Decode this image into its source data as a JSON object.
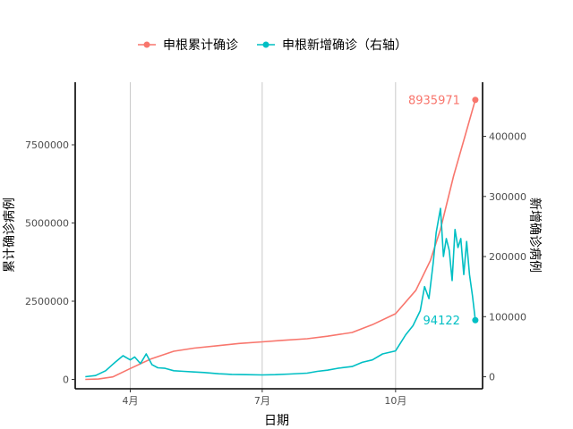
{
  "chart_data": {
    "type": "line",
    "xlabel": "日期",
    "ylabel_left": "累计确诊病例",
    "ylabel_right": "新增确诊病例",
    "x_axis": {
      "range": [
        "2020-02-23",
        "2020-11-30"
      ],
      "ticks": [
        {
          "date": "2020-04-01",
          "label": "4月"
        },
        {
          "date": "2020-07-01",
          "label": "7月"
        },
        {
          "date": "2020-10-01",
          "label": "10月"
        }
      ]
    },
    "y_left": {
      "range": [
        -300000,
        9500000
      ],
      "ticks": [
        0,
        2500000,
        5000000,
        7500000
      ]
    },
    "y_right": {
      "range": [
        -20000,
        490000
      ],
      "ticks": [
        0,
        100000,
        200000,
        300000,
        400000
      ]
    },
    "legend": {
      "position": "top",
      "entries": [
        "申根累计确诊",
        "申根新增确诊（右轴）"
      ]
    },
    "grid": "vertical-major",
    "colors": {
      "cumulative": "#F8766D",
      "daily": "#00BFC4"
    },
    "series": [
      {
        "name": "申根累计确诊",
        "axis": "left",
        "color": "#F8766D",
        "end_label": "8935971",
        "points": [
          [
            "2020-03-01",
            0
          ],
          [
            "2020-03-10",
            10000
          ],
          [
            "2020-03-20",
            80000
          ],
          [
            "2020-04-01",
            350000
          ],
          [
            "2020-04-15",
            650000
          ],
          [
            "2020-05-01",
            900000
          ],
          [
            "2020-05-15",
            1000000
          ],
          [
            "2020-06-01",
            1080000
          ],
          [
            "2020-06-15",
            1150000
          ],
          [
            "2020-07-01",
            1200000
          ],
          [
            "2020-07-15",
            1250000
          ],
          [
            "2020-08-01",
            1300000
          ],
          [
            "2020-08-15",
            1380000
          ],
          [
            "2020-09-01",
            1500000
          ],
          [
            "2020-09-15",
            1750000
          ],
          [
            "2020-10-01",
            2100000
          ],
          [
            "2020-10-15",
            2850000
          ],
          [
            "2020-10-25",
            3800000
          ],
          [
            "2020-11-01",
            4800000
          ],
          [
            "2020-11-10",
            6500000
          ],
          [
            "2020-11-18",
            7800000
          ],
          [
            "2020-11-25",
            8935971
          ]
        ]
      },
      {
        "name": "申根新增确诊（右轴）",
        "axis": "right",
        "color": "#00BFC4",
        "end_label": "94122",
        "points": [
          [
            "2020-03-01",
            0
          ],
          [
            "2020-03-08",
            2000
          ],
          [
            "2020-03-15",
            10000
          ],
          [
            "2020-03-22",
            25000
          ],
          [
            "2020-03-27",
            35000
          ],
          [
            "2020-04-01",
            28000
          ],
          [
            "2020-04-04",
            33000
          ],
          [
            "2020-04-08",
            22000
          ],
          [
            "2020-04-12",
            38000
          ],
          [
            "2020-04-16",
            20000
          ],
          [
            "2020-04-20",
            15000
          ],
          [
            "2020-04-25",
            14000
          ],
          [
            "2020-05-01",
            10000
          ],
          [
            "2020-05-08",
            9000
          ],
          [
            "2020-05-15",
            8000
          ],
          [
            "2020-05-22",
            7000
          ],
          [
            "2020-06-01",
            5000
          ],
          [
            "2020-06-10",
            4000
          ],
          [
            "2020-06-20",
            3500
          ],
          [
            "2020-07-01",
            3000
          ],
          [
            "2020-07-10",
            3500
          ],
          [
            "2020-07-20",
            4500
          ],
          [
            "2020-08-01",
            6000
          ],
          [
            "2020-08-08",
            9000
          ],
          [
            "2020-08-15",
            11000
          ],
          [
            "2020-08-22",
            14000
          ],
          [
            "2020-09-01",
            17000
          ],
          [
            "2020-09-08",
            24000
          ],
          [
            "2020-09-15",
            28000
          ],
          [
            "2020-09-22",
            38000
          ],
          [
            "2020-10-01",
            43000
          ],
          [
            "2020-10-08",
            70000
          ],
          [
            "2020-10-13",
            85000
          ],
          [
            "2020-10-18",
            110000
          ],
          [
            "2020-10-21",
            150000
          ],
          [
            "2020-10-24",
            130000
          ],
          [
            "2020-10-27",
            190000
          ],
          [
            "2020-10-29",
            240000
          ],
          [
            "2020-11-01",
            280000
          ],
          [
            "2020-11-03",
            200000
          ],
          [
            "2020-11-05",
            230000
          ],
          [
            "2020-11-07",
            210000
          ],
          [
            "2020-11-09",
            160000
          ],
          [
            "2020-11-11",
            245000
          ],
          [
            "2020-11-13",
            215000
          ],
          [
            "2020-11-15",
            230000
          ],
          [
            "2020-11-17",
            170000
          ],
          [
            "2020-11-19",
            225000
          ],
          [
            "2020-11-21",
            170000
          ],
          [
            "2020-11-23",
            135000
          ],
          [
            "2020-11-25",
            94122
          ]
        ]
      }
    ]
  }
}
